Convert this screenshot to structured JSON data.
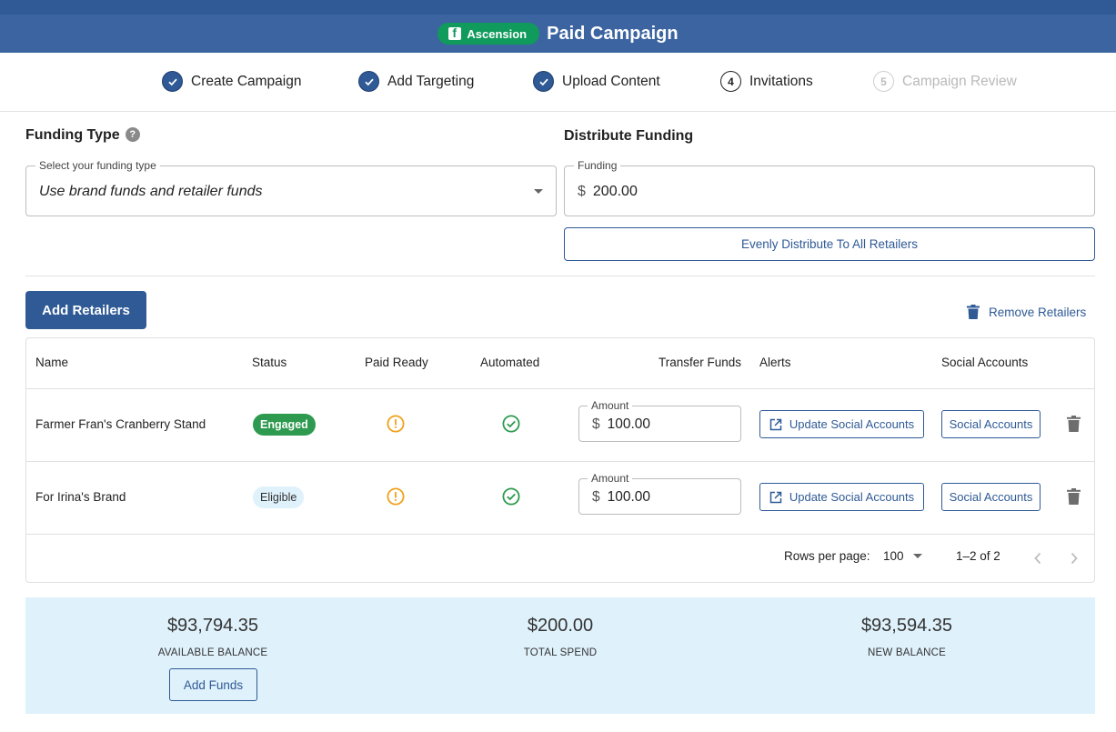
{
  "header": {
    "brand_label": "Ascension",
    "brand_icon": "facebook-icon",
    "title": "Paid Campaign",
    "bg_color": "#3b64a0",
    "brand_color": "#109a5c"
  },
  "stepper": {
    "steps": [
      {
        "label": "Create Campaign",
        "state": "done"
      },
      {
        "label": "Add Targeting",
        "state": "done"
      },
      {
        "label": "Upload Content",
        "state": "done"
      },
      {
        "label": "Invitations",
        "number": "4",
        "state": "current"
      },
      {
        "label": "Campaign Review",
        "number": "5",
        "state": "disabled"
      }
    ]
  },
  "funding_type": {
    "title": "Funding Type",
    "help": "?",
    "select_label": "Select your funding type",
    "select_value": "Use brand funds and retailer funds"
  },
  "distribute": {
    "title": "Distribute Funding",
    "field_label": "Funding",
    "currency": "$",
    "field_value": "200.00",
    "button_label": "Evenly Distribute To All Retailers"
  },
  "actions": {
    "add_retailers": "Add Retailers",
    "remove_retailers": "Remove Retailers"
  },
  "table": {
    "headers": {
      "name": "Name",
      "status": "Status",
      "paid_ready": "Paid Ready",
      "automated": "Automated",
      "transfer_funds": "Transfer Funds",
      "alerts": "Alerts",
      "social_accounts": "Social Accounts"
    },
    "rows": [
      {
        "name": "Farmer Fran's Cranberry Stand",
        "status": "Engaged",
        "amount_label": "Amount",
        "currency": "$",
        "amount": "100.00",
        "alert_button": "Update Social Accounts",
        "social_button": "Social Accounts"
      },
      {
        "name": "For Irina's Brand",
        "status": "Eligible",
        "amount_label": "Amount",
        "currency": "$",
        "amount": "100.00",
        "alert_button": "Update Social Accounts",
        "social_button": "Social Accounts"
      }
    ],
    "pagination": {
      "rows_per_page_label": "Rows per page:",
      "rows_per_page": "100",
      "range": "1–2 of 2"
    }
  },
  "summary": {
    "available_balance": "$93,794.35",
    "available_label": "AVAILABLE BALANCE",
    "total_spend": "$200.00",
    "total_label": "TOTAL SPEND",
    "new_balance": "$93,594.35",
    "new_label": "NEW BALANCE",
    "add_funds": "Add Funds"
  }
}
